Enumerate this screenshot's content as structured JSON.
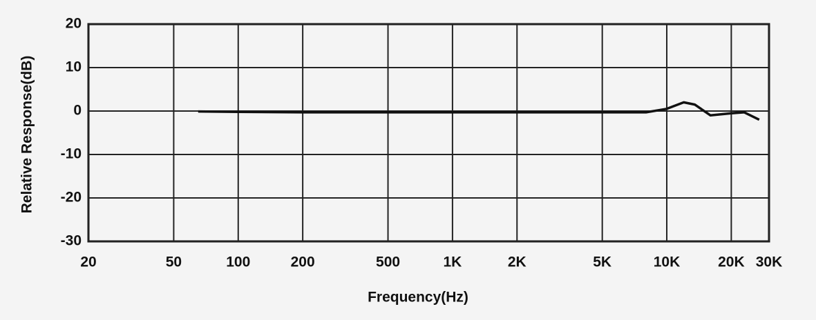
{
  "chart_data": {
    "type": "line",
    "x_label": "Frequency(Hz)",
    "y_label": "Relative Response(dB)",
    "x_log": true,
    "grid": true,
    "xlim": [
      20,
      30000
    ],
    "ylim": [
      -30,
      20
    ],
    "xticks": [
      20,
      50,
      100,
      200,
      500,
      {
        "value": 1000,
        "label": "1K"
      },
      {
        "value": 2000,
        "label": "2K"
      },
      {
        "value": 5000,
        "label": "5K"
      },
      {
        "value": 10000,
        "label": "10K"
      },
      {
        "value": 20000,
        "label": "20K"
      },
      {
        "value": 30000,
        "label": "30K"
      }
    ],
    "yticks": [
      -30,
      -20,
      -10,
      0,
      10,
      20
    ],
    "series": [
      {
        "color": "#111111",
        "x": [
          65,
          100,
          200,
          500,
          1000,
          2000,
          5000,
          8000,
          10000,
          12000,
          13500,
          16000,
          20000,
          23000,
          27000
        ],
        "values": [
          -0.1,
          -0.2,
          -0.3,
          -0.3,
          -0.3,
          -0.3,
          -0.3,
          -0.3,
          0.5,
          2,
          1.5,
          -1,
          -0.5,
          -0.3,
          -2
        ]
      }
    ]
  }
}
